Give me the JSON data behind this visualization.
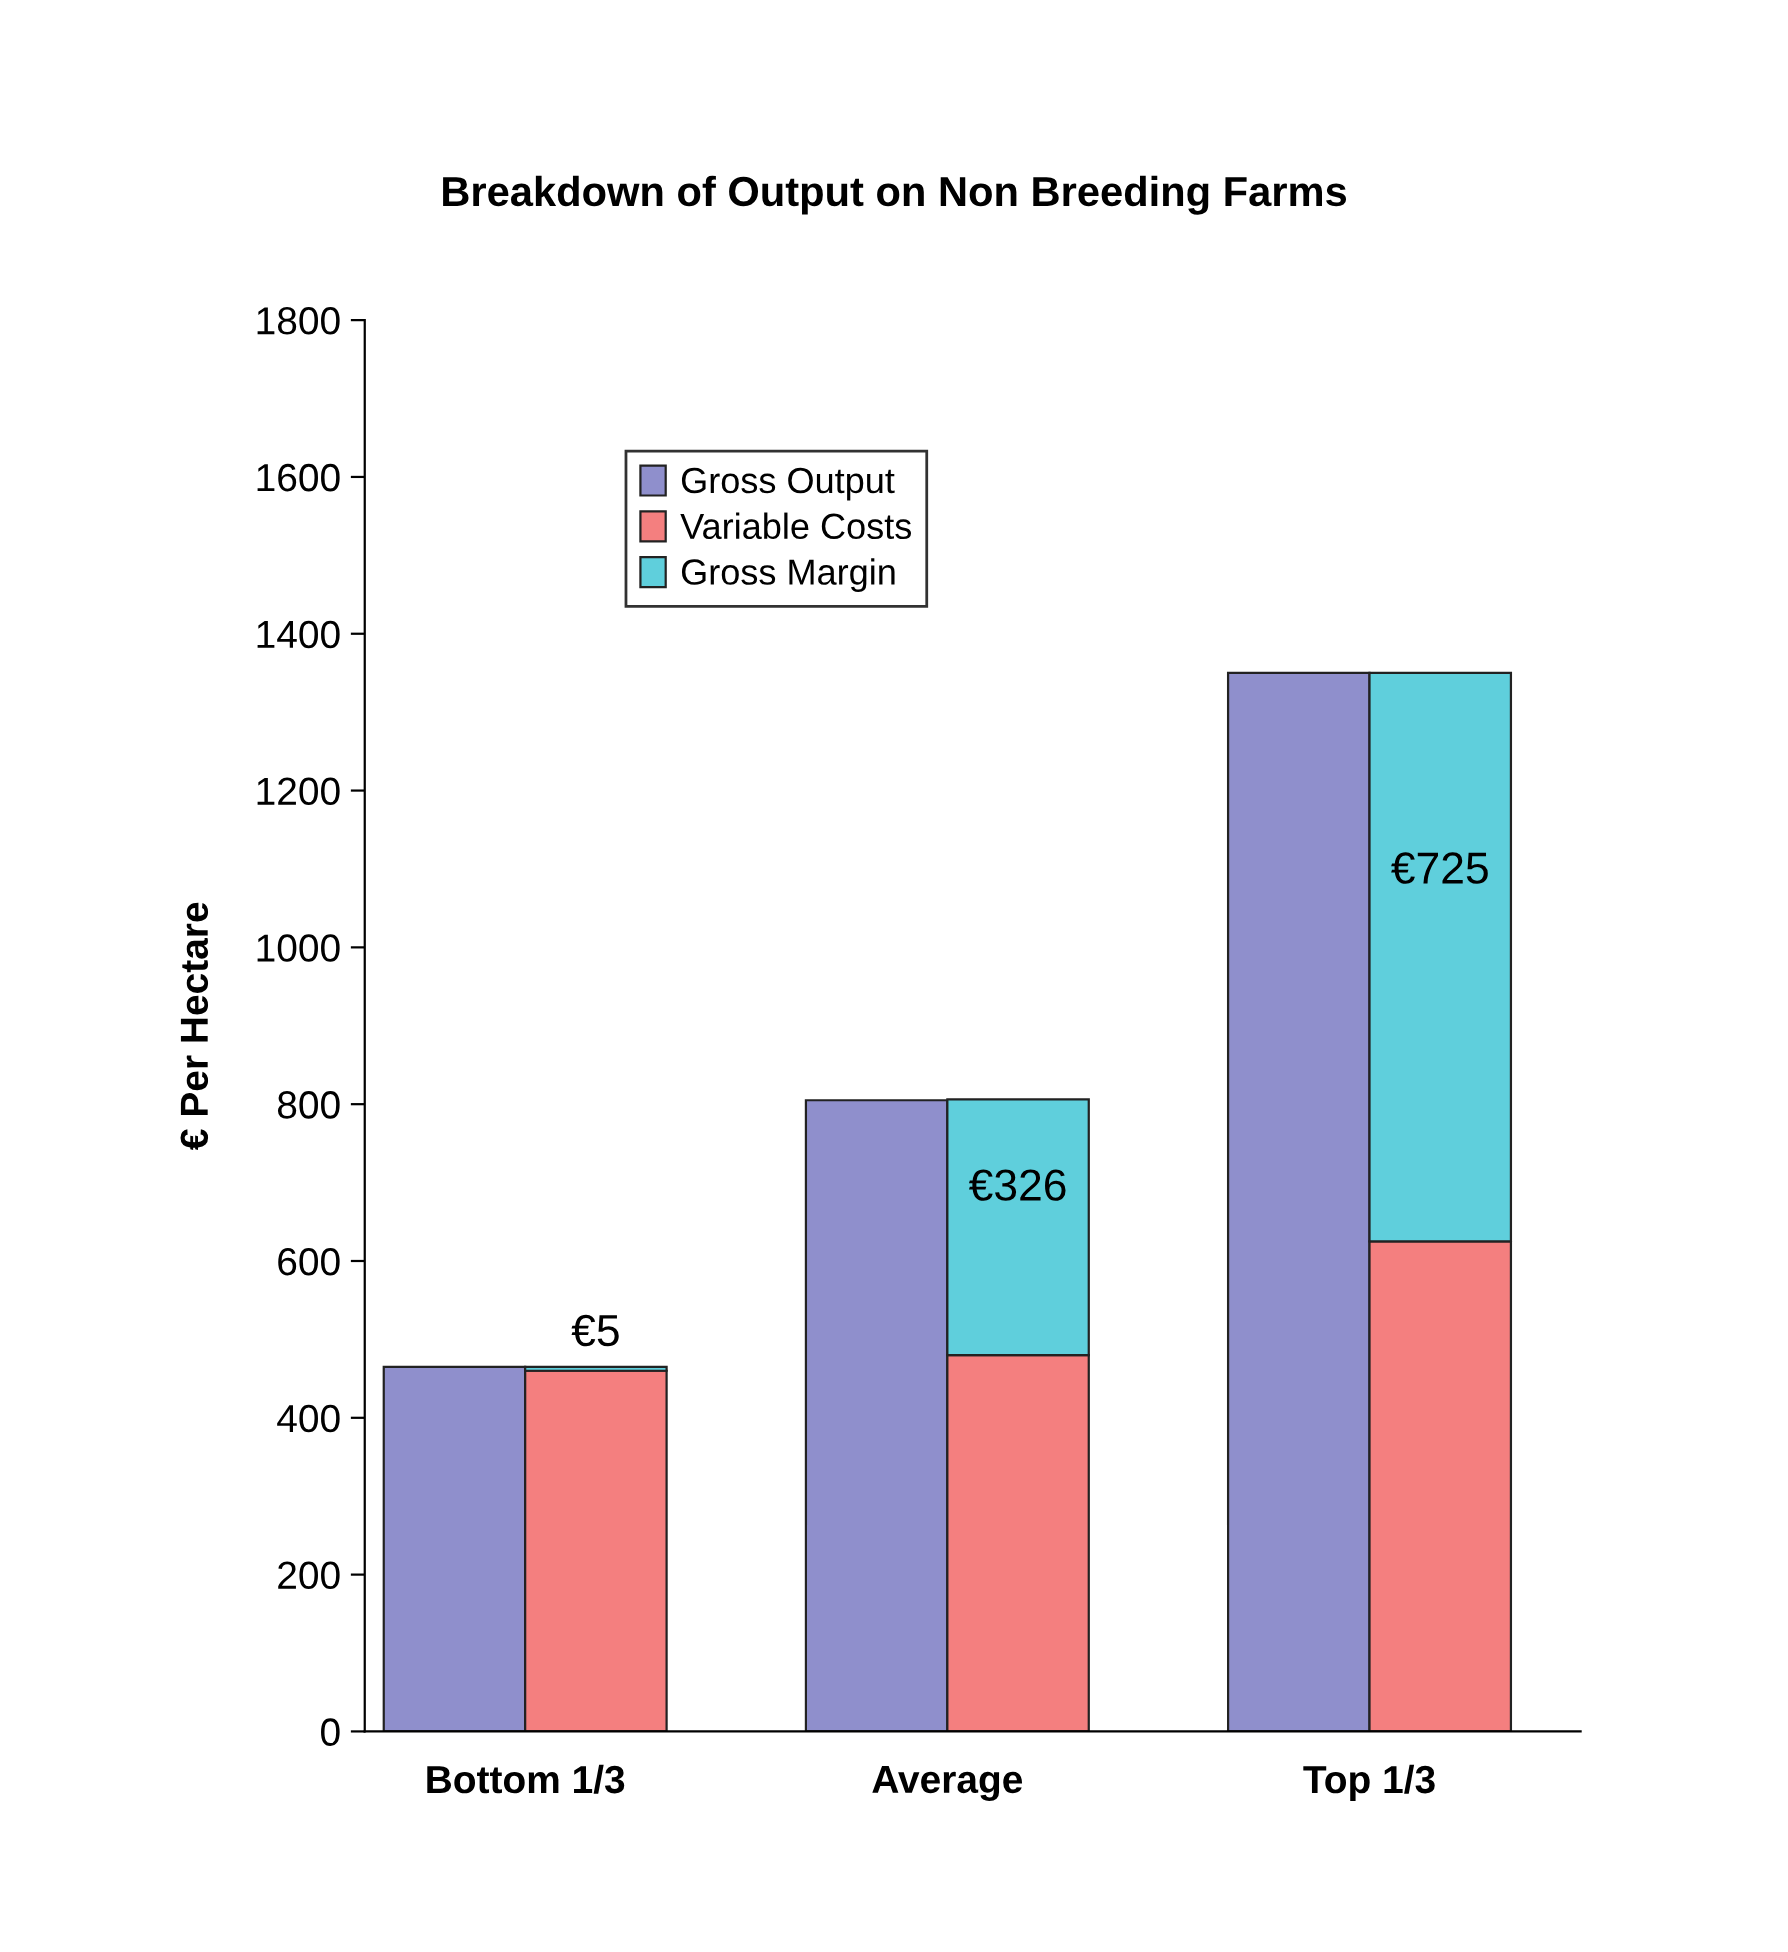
{
  "chart_data": {
    "type": "bar",
    "title": "Breakdown of Output on Non Breeding Farms",
    "ylabel": "€ Per Hectare",
    "categories": [
      "Bottom 1/3",
      "Average",
      "Top 1/3"
    ],
    "series": [
      {
        "name": "Gross Output",
        "color": "#8f8fcc",
        "values": [
          465,
          805,
          1350
        ]
      },
      {
        "name": "Variable Costs",
        "color": "#f47f7f",
        "values": [
          460,
          480,
          625
        ],
        "base": [
          0,
          0,
          0
        ]
      },
      {
        "name": "Gross Margin",
        "color": "#5fcfdc",
        "values": [
          5,
          326,
          725
        ],
        "base": [
          460,
          480,
          625
        ],
        "value_labels": [
          "€5",
          "€326",
          "€725"
        ]
      }
    ],
    "ylim": [
      0,
      1800
    ],
    "yticks": [
      0,
      200,
      400,
      600,
      800,
      1000,
      1200,
      1400,
      1600,
      1800
    ],
    "grid": false,
    "legend": "top left"
  }
}
